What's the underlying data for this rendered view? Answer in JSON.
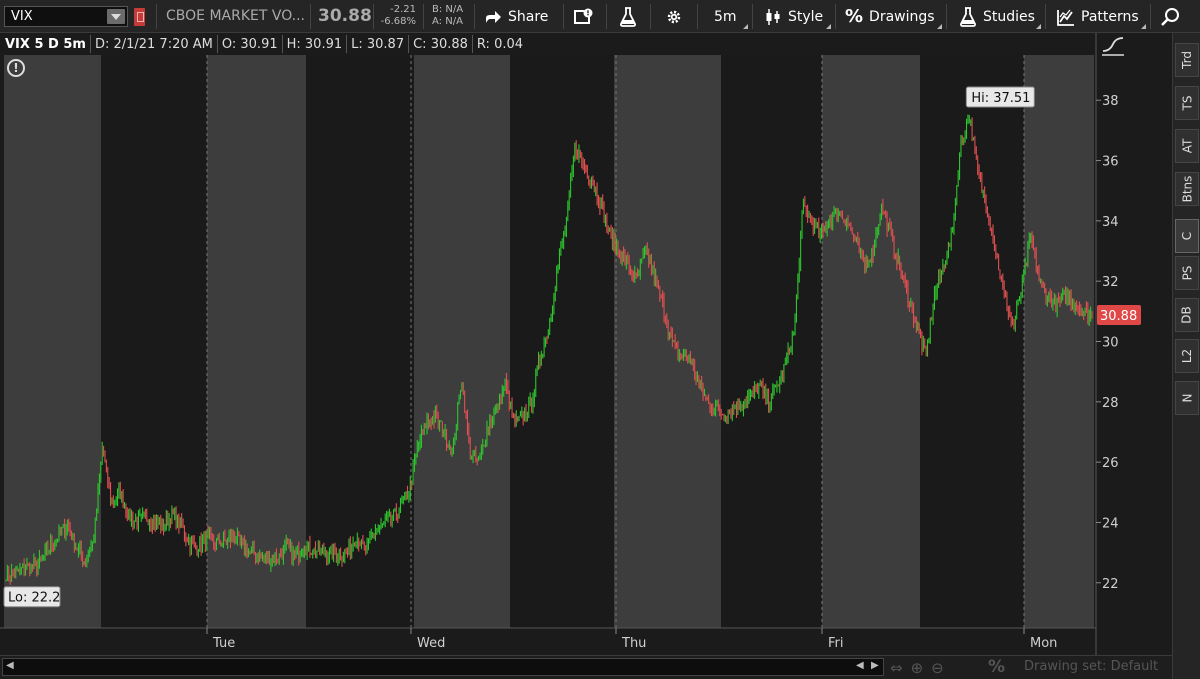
{
  "toolbar": {
    "symbol": "VIX",
    "description": "CBOE MARKET VO...",
    "last_price": "30.88",
    "net_change": "-2.21",
    "pct_change": "-6.68%",
    "bid": "B: N/A",
    "ask": "A: N/A",
    "share_label": "Share",
    "timeframe_label": "5m",
    "style_label": "Style",
    "drawings_label": "Drawings",
    "studies_label": "Studies",
    "patterns_label": "Patterns",
    "icons": [
      "share-icon",
      "alert-icon",
      "flask-icon",
      "gear-icon",
      "candle-icon",
      "percent-icon",
      "studies-flask-icon",
      "patterns-icon",
      "search-icon"
    ]
  },
  "chart_header": {
    "title": "VIX 5 D 5m",
    "date": "D: 2/1/21 7:20 AM",
    "open": "O: 30.91",
    "high": "H: 30.91",
    "low": "L: 30.87",
    "close": "C: 30.88",
    "range": "R: 0.04"
  },
  "sidebar": {
    "tabs": [
      "Trd",
      "TS",
      "AT",
      "Btns",
      "C",
      "PS",
      "DB",
      "L2",
      "N"
    ],
    "active_tab": "C"
  },
  "bottom_bar": {
    "drawing_set": "Drawing set: Default"
  },
  "colors": {
    "up": "#2ec52e",
    "down": "#e05050",
    "band_light": "#3d3d3d",
    "band_dark": "#1a1a1a",
    "price_tag": "#e04848"
  },
  "chart_data": {
    "type": "candlestick",
    "ylim": [
      20.5,
      39.5
    ],
    "y_ticks": [
      22,
      24,
      26,
      28,
      30,
      32,
      34,
      36,
      38
    ],
    "x_labels": [
      "Tue",
      "Wed",
      "Thu",
      "Fri",
      "Mon"
    ],
    "high_annotation": "Hi: 37.51",
    "low_annotation": "Lo: 22.2",
    "last_price_label": "30.88",
    "last_price": 30.88,
    "path": [
      22.3,
      22.3,
      22.5,
      22.5,
      22.7,
      23.2,
      23.6,
      23.9,
      23.2,
      22.7,
      23.4,
      26.5,
      24.6,
      25.0,
      24.2,
      24.0,
      24.2,
      24.0,
      23.9,
      24.3,
      23.9,
      23.3,
      23.2,
      23.5,
      23.3,
      23.4,
      23.5,
      23.2,
      23.0,
      22.9,
      22.8,
      22.8,
      23.2,
      22.9,
      23.2,
      23.1,
      23.0,
      23.0,
      22.9,
      23.0,
      23.6,
      23.0,
      23.7,
      23.9,
      24.1,
      24.5,
      25.0,
      26.5,
      27.3,
      27.5,
      27.0,
      26.3,
      28.8,
      26.3,
      26.0,
      27.2,
      27.7,
      28.6,
      27.3,
      27.5,
      28.0,
      29.5,
      30.5,
      32.5,
      34.0,
      36.5,
      35.8,
      35.3,
      34.5,
      33.5,
      33.0,
      32.5,
      32.0,
      33.0,
      32.2,
      31.2,
      30.0,
      29.5,
      29.5,
      28.7,
      28.0,
      27.8,
      27.6,
      27.8,
      27.9,
      28.2,
      28.5,
      28.0,
      28.5,
      29.2,
      30.4,
      34.5,
      34.0,
      33.5,
      34.0,
      34.3,
      34.0,
      33.3,
      32.5,
      33.0,
      34.5,
      33.5,
      32.5,
      31.5,
      30.5,
      29.5,
      31.5,
      32.5,
      33.5,
      36.5,
      37.51,
      35.5,
      34.5,
      33.0,
      31.5,
      30.5,
      31.8,
      33.5,
      32.0,
      31.5,
      31.2,
      31.5,
      31.3,
      31.0,
      30.88
    ]
  }
}
